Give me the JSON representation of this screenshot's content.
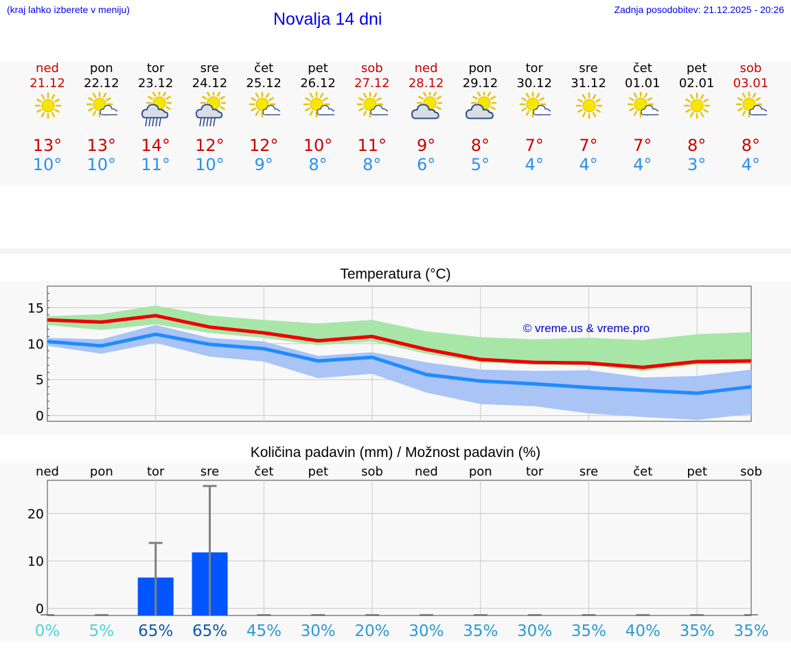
{
  "header": {
    "note": "(kraj lahko izberete v meniju)",
    "title": "Novalja 14 dni",
    "update": "Zadnja posodobitev: 21.12.2025 - 20:26"
  },
  "colors": {
    "weekend": "#cc0000",
    "max_temp": "#cc0000",
    "min_temp": "#2a8ff0",
    "max_band": "#a8e6a8",
    "min_band": "#a9c4f5",
    "overlap_band": "#7dc7a8",
    "max_line": "#ee0000",
    "min_line": "#1f8bff",
    "precip_bar": "#0055ff",
    "whisker": "#808080"
  },
  "days": [
    {
      "name": "ned",
      "date": "21.12",
      "weekend": true,
      "icon": "sun",
      "max": "13°",
      "min": "10°"
    },
    {
      "name": "pon",
      "date": "22.12",
      "weekend": false,
      "icon": "sun-cloud",
      "max": "13°",
      "min": "10°"
    },
    {
      "name": "tor",
      "date": "23.12",
      "weekend": false,
      "icon": "sun-cloud-rain",
      "max": "14°",
      "min": "11°"
    },
    {
      "name": "sre",
      "date": "24.12",
      "weekend": false,
      "icon": "sun-cloud-rain",
      "max": "12°",
      "min": "10°"
    },
    {
      "name": "čet",
      "date": "25.12",
      "weekend": false,
      "icon": "sun-cloud",
      "max": "12°",
      "min": "9°"
    },
    {
      "name": "pet",
      "date": "26.12",
      "weekend": false,
      "icon": "sun-cloud",
      "max": "10°",
      "min": "8°"
    },
    {
      "name": "sob",
      "date": "27.12",
      "weekend": true,
      "icon": "sun-cloud",
      "max": "11°",
      "min": "8°"
    },
    {
      "name": "ned",
      "date": "28.12",
      "weekend": true,
      "icon": "sun-big-cloud",
      "max": "9°",
      "min": "6°"
    },
    {
      "name": "pon",
      "date": "29.12",
      "weekend": false,
      "icon": "sun-big-cloud",
      "max": "8°",
      "min": "5°"
    },
    {
      "name": "tor",
      "date": "30.12",
      "weekend": false,
      "icon": "sun-cloud",
      "max": "7°",
      "min": "4°"
    },
    {
      "name": "sre",
      "date": "31.12",
      "weekend": false,
      "icon": "sun",
      "max": "7°",
      "min": "4°"
    },
    {
      "name": "čet",
      "date": "01.01",
      "weekend": false,
      "icon": "sun-cloud",
      "max": "7°",
      "min": "4°"
    },
    {
      "name": "pet",
      "date": "02.01",
      "weekend": false,
      "icon": "sun",
      "max": "8°",
      "min": "3°"
    },
    {
      "name": "sob",
      "date": "03.01",
      "weekend": true,
      "icon": "sun-cloud",
      "max": "8°",
      "min": "4°"
    }
  ],
  "chart_data": [
    {
      "type": "line",
      "title": "Temperatura (°C)",
      "watermark": "© vreme.us & vreme.pro",
      "ylim": [
        -0.8,
        18
      ],
      "yticks": [
        0,
        5,
        10,
        15
      ],
      "x": [
        0,
        1,
        2,
        3,
        4,
        5,
        6,
        7,
        8,
        9,
        10,
        11,
        12,
        13
      ],
      "series": [
        {
          "name": "max",
          "values": [
            13.3,
            13.0,
            13.9,
            12.3,
            11.5,
            10.4,
            11.0,
            9.2,
            7.8,
            7.4,
            7.3,
            6.7,
            7.5,
            7.6
          ],
          "band_low": [
            12.6,
            11.9,
            12.7,
            11.5,
            10.8,
            9.8,
            10.3,
            8.6,
            7.4,
            7.1,
            7.0,
            6.2,
            7.1,
            7.2
          ],
          "band_high": [
            13.8,
            14.1,
            15.3,
            13.9,
            13.3,
            12.8,
            13.3,
            11.7,
            10.9,
            10.6,
            10.8,
            10.5,
            11.3,
            11.6
          ]
        },
        {
          "name": "min",
          "values": [
            10.3,
            9.7,
            11.3,
            9.9,
            9.3,
            7.6,
            8.1,
            5.7,
            4.8,
            4.4,
            3.9,
            3.5,
            3.1,
            4.0
          ],
          "band_low": [
            9.7,
            8.6,
            10.1,
            8.2,
            7.5,
            5.2,
            5.8,
            3.2,
            1.6,
            1.3,
            0.3,
            -0.2,
            -0.6,
            0.2
          ],
          "band_high": [
            10.8,
            10.6,
            12.6,
            10.8,
            10.3,
            8.3,
            8.8,
            7.4,
            6.4,
            6.2,
            6.3,
            5.3,
            5.5,
            6.4
          ]
        }
      ]
    },
    {
      "type": "bar",
      "title": "Količina padavin (mm) / Možnost padavin (%)",
      "categories": [
        "ned",
        "pon",
        "tor",
        "sre",
        "čet",
        "pet",
        "sob",
        "ned",
        "pon",
        "tor",
        "sre",
        "čet",
        "pet",
        "sob"
      ],
      "ylim": [
        -1.5,
        27
      ],
      "yticks": [
        0,
        10,
        20
      ],
      "values": [
        0,
        0,
        6.5,
        11.8,
        0,
        0,
        0,
        0,
        0,
        0,
        0,
        0,
        0,
        0
      ],
      "whisker_high": [
        0,
        0,
        13.8,
        25.8,
        0,
        0,
        0,
        0,
        0,
        0,
        0,
        0,
        0,
        0
      ],
      "probability": [
        "0%",
        "5%",
        "65%",
        "65%",
        "45%",
        "30%",
        "20%",
        "30%",
        "35%",
        "30%",
        "35%",
        "40%",
        "35%",
        "35%"
      ],
      "probability_values": [
        0,
        5,
        65,
        65,
        45,
        30,
        20,
        30,
        35,
        30,
        35,
        40,
        35,
        35
      ]
    }
  ]
}
